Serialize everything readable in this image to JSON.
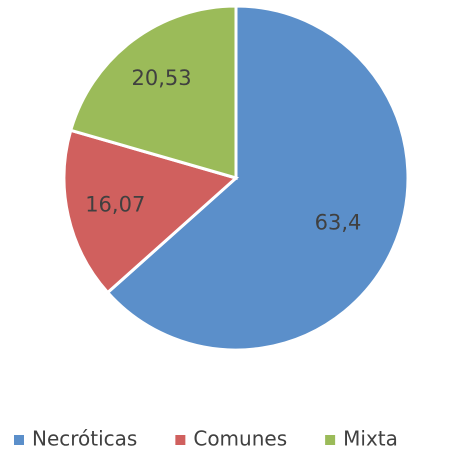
{
  "chart_data": {
    "type": "pie",
    "categories": [
      "Necróticas",
      "Comunes",
      "Mixta"
    ],
    "values": [
      63.4,
      16.07,
      20.53
    ],
    "value_labels": [
      "63,4",
      "16,07",
      "20,53"
    ],
    "colors": [
      "#5b8fca",
      "#d0605e",
      "#9bbb59"
    ],
    "legend": "bottom"
  }
}
